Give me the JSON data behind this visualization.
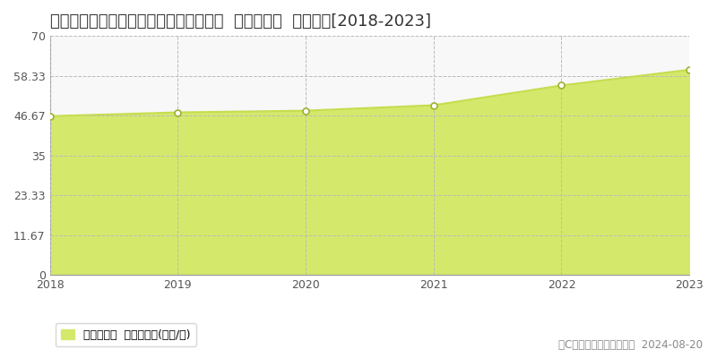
{
  "title": "茨城県つくば市研究学園１丁目２番３外  基準地価格  地価推移[2018-2023]",
  "years": [
    2018,
    2019,
    2020,
    2021,
    2022,
    2023
  ],
  "values": [
    46.5,
    47.6,
    48.1,
    49.7,
    55.5,
    60.1
  ],
  "ylim": [
    0,
    70
  ],
  "yticks": [
    0,
    11.67,
    23.33,
    35,
    46.67,
    58.33,
    70
  ],
  "ytick_labels": [
    "0",
    "11.67",
    "23.33",
    "35",
    "46.67",
    "58.33",
    "70"
  ],
  "fill_color": "#d4e96b",
  "line_color": "#c8dc50",
  "marker_facecolor": "#ffffff",
  "marker_edgecolor": "#a0b030",
  "grid_color": "#bbbbbb",
  "bg_color": "#ffffff",
  "plot_bg_color": "#f8f8f8",
  "legend_label": "基準地価格  平均嵪単価(万円/嵪)",
  "copyright_text": "（C）土地価格ドットコム  2024-08-20",
  "title_fontsize": 13,
  "axis_fontsize": 9,
  "legend_fontsize": 9,
  "copyright_fontsize": 8.5
}
